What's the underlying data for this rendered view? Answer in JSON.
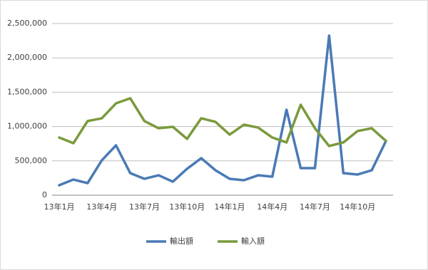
{
  "chart_data": {
    "type": "line",
    "categories": [
      "13年1月",
      null,
      null,
      "13年4月",
      null,
      null,
      "13年7月",
      null,
      null,
      "13年10月",
      null,
      null,
      "14年1月",
      null,
      null,
      "14年4月",
      null,
      null,
      "14年7月",
      null,
      null,
      "14年10月",
      null,
      null
    ],
    "series": [
      {
        "name": "輸出額",
        "color": "#4a7ab5",
        "values": [
          145000,
          228000,
          176000,
          508000,
          726000,
          322000,
          239000,
          290000,
          197000,
          384000,
          539000,
          363000,
          239000,
          218000,
          290000,
          270000,
          1245000,
          394000,
          394000,
          2324000,
          322000,
          301000,
          363000,
          790000
        ]
      },
      {
        "name": "輸入額",
        "color": "#7a9a3c",
        "values": [
          840000,
          757000,
          1079000,
          1120000,
          1338000,
          1411000,
          1079000,
          975000,
          996000,
          820000,
          1120000,
          1068000,
          882000,
          1027000,
          985000,
          840000,
          768000,
          1317000,
          975000,
          716000,
          768000,
          934000,
          975000,
          790000
        ]
      }
    ],
    "ylim": [
      0,
      2500000
    ],
    "yticks": [
      0,
      {
        "value": 500000,
        "label": "500,000"
      },
      {
        "value": 1000000,
        "label": "1,000,000"
      },
      {
        "value": 1500000,
        "label": "1,500,000"
      },
      {
        "value": 2000000,
        "label": "2,000,000"
      },
      {
        "value": 2500000,
        "label": "2,500,000"
      }
    ],
    "grid": true,
    "legend": "bottom"
  }
}
